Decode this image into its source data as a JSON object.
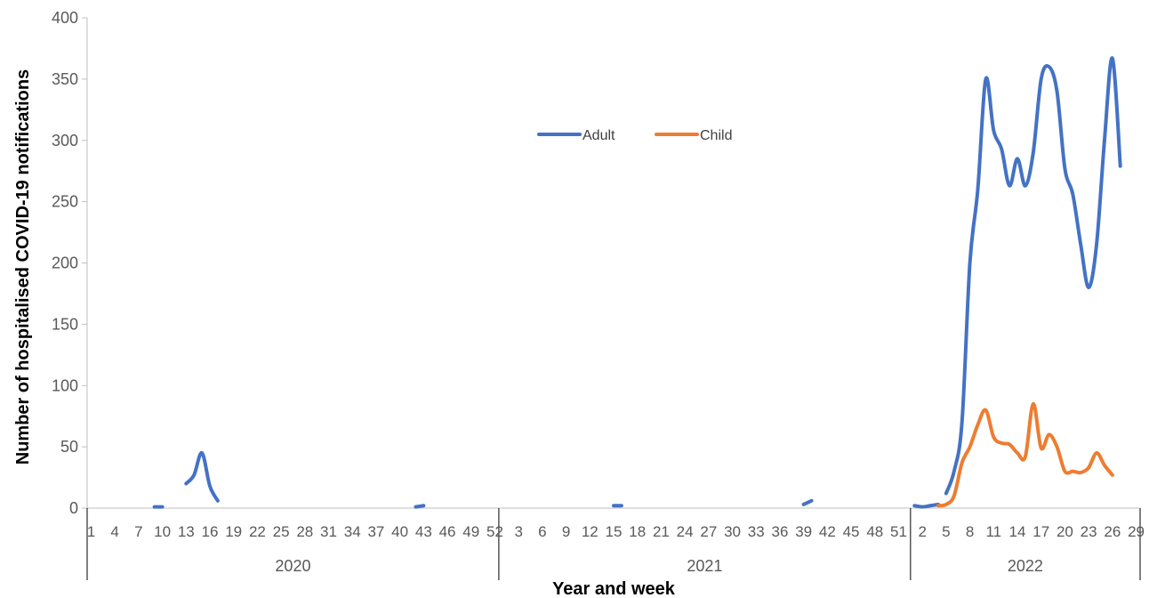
{
  "chart_data": {
    "type": "line",
    "title": "",
    "xlabel": "Year and week",
    "ylabel": "Number of hospitalised COVID-19 notifications",
    "ylim": [
      0,
      400
    ],
    "yticks": [
      0,
      50,
      100,
      150,
      200,
      250,
      300,
      350,
      400
    ],
    "grid": false,
    "legend_position": "top-center",
    "years": [
      {
        "label": "2020",
        "weeks": 52
      },
      {
        "label": "2021",
        "weeks": 52
      },
      {
        "label": "2022",
        "weeks": 29
      }
    ],
    "week_tick_labels": {
      "2020": [
        "1",
        "4",
        "7",
        "10",
        "13",
        "16",
        "19",
        "22",
        "25",
        "28",
        "31",
        "34",
        "37",
        "40",
        "43",
        "46",
        "49",
        "52"
      ],
      "2021": [
        "3",
        "6",
        "9",
        "12",
        "15",
        "18",
        "21",
        "24",
        "27",
        "30",
        "33",
        "36",
        "39",
        "42",
        "45",
        "48",
        "51"
      ],
      "2022": [
        "2",
        "5",
        "8",
        "11",
        "14",
        "17",
        "20",
        "23",
        "26",
        "29"
      ]
    },
    "series": [
      {
        "name": "Adult",
        "color": "#4472C4",
        "segments": [
          [
            [
              "2020",
              9,
              1
            ],
            [
              "2020",
              10,
              1
            ]
          ],
          [
            [
              "2020",
              13,
              20
            ],
            [
              "2020",
              14,
              27
            ],
            [
              "2020",
              15,
              45
            ],
            [
              "2020",
              16,
              18
            ],
            [
              "2020",
              17,
              6
            ]
          ],
          [
            [
              "2020",
              42,
              1
            ],
            [
              "2020",
              43,
              2
            ]
          ],
          [
            [
              "2021",
              15,
              2
            ],
            [
              "2021",
              16,
              2
            ]
          ],
          [
            [
              "2021",
              39,
              3
            ],
            [
              "2021",
              40,
              6
            ]
          ],
          [
            [
              "2022",
              1,
              2
            ],
            [
              "2022",
              2,
              1
            ],
            [
              "2022",
              3,
              2
            ],
            [
              "2022",
              4,
              3
            ]
          ],
          [
            [
              "2022",
              5,
              12
            ],
            [
              "2022",
              6,
              30
            ],
            [
              "2022",
              7,
              70
            ],
            [
              "2022",
              8,
              200
            ],
            [
              "2022",
              9,
              260
            ],
            [
              "2022",
              10,
              350
            ],
            [
              "2022",
              11,
              308
            ],
            [
              "2022",
              12,
              293
            ],
            [
              "2022",
              13,
              263
            ],
            [
              "2022",
              14,
              285
            ],
            [
              "2022",
              15,
              263
            ],
            [
              "2022",
              16,
              290
            ],
            [
              "2022",
              17,
              350
            ],
            [
              "2022",
              18,
              360
            ],
            [
              "2022",
              19,
              340
            ],
            [
              "2022",
              20,
              277
            ],
            [
              "2022",
              21,
              256
            ],
            [
              "2022",
              22,
              215
            ],
            [
              "2022",
              23,
              180
            ],
            [
              "2022",
              24,
              215
            ],
            [
              "2022",
              25,
              300
            ],
            [
              "2022",
              26,
              367
            ],
            [
              "2022",
              27,
              279
            ]
          ]
        ]
      },
      {
        "name": "Child",
        "color": "#ED7D31",
        "segments": [
          [
            [
              "2022",
              4,
              2
            ],
            [
              "2022",
              5,
              3
            ],
            [
              "2022",
              6,
              10
            ],
            [
              "2022",
              7,
              37
            ],
            [
              "2022",
              8,
              50
            ],
            [
              "2022",
              9,
              68
            ],
            [
              "2022",
              10,
              80
            ],
            [
              "2022",
              11,
              58
            ],
            [
              "2022",
              12,
              53
            ],
            [
              "2022",
              13,
              52
            ],
            [
              "2022",
              14,
              45
            ],
            [
              "2022",
              15,
              42
            ],
            [
              "2022",
              16,
              85
            ],
            [
              "2022",
              17,
              49
            ],
            [
              "2022",
              18,
              60
            ],
            [
              "2022",
              19,
              50
            ],
            [
              "2022",
              20,
              30
            ],
            [
              "2022",
              21,
              30
            ],
            [
              "2022",
              22,
              29
            ],
            [
              "2022",
              23,
              33
            ],
            [
              "2022",
              24,
              45
            ],
            [
              "2022",
              25,
              35
            ],
            [
              "2022",
              26,
              27
            ]
          ]
        ]
      }
    ]
  }
}
